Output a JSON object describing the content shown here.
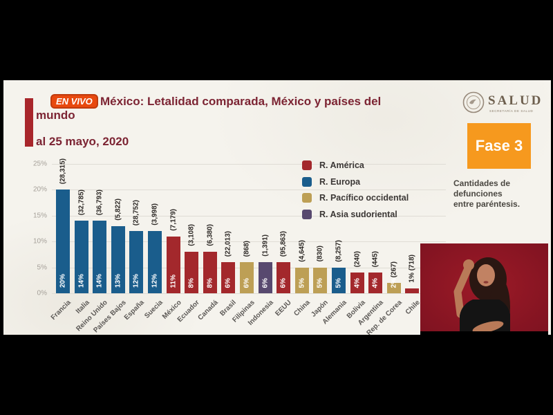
{
  "header": {
    "live_badge": "EN VIVO",
    "title_line1": "México: Letalidad comparada, México y países del",
    "title_line2": "mundo",
    "date": "al 25 mayo, 2020"
  },
  "branding": {
    "logo_text": "SALUD",
    "logo_subtext": "SECRETARÍA DE SALUD",
    "phase_label": "Fase 3",
    "note_lines": [
      "Cantidades de",
      "defunciones",
      "entre paréntesis."
    ]
  },
  "interpreter": {
    "description": "sign language interpreter on dark red background",
    "bg_color": "#8e1522"
  },
  "chart_data": {
    "type": "bar",
    "title": "México: Letalidad comparada, México y países del mundo",
    "as_of": "al 25 mayo, 2020",
    "ylabel": "",
    "ylim": [
      0,
      25
    ],
    "yticks": [
      "0%",
      "5%",
      "10%",
      "15%",
      "20%",
      "25%"
    ],
    "grid": true,
    "legend_position": "upper right",
    "legend": [
      {
        "label": "R. América",
        "color": "#a3282c"
      },
      {
        "label": "R. Europa",
        "color": "#1a5d8c"
      },
      {
        "label": "R. Pacífico occidental",
        "color": "#bd9f55"
      },
      {
        "label": "R. Asia sudoriental",
        "color": "#58496f"
      }
    ],
    "bars": [
      {
        "country": "Francia",
        "region": "R. Europa",
        "pct": 20,
        "pct_label": "20%",
        "deaths_label": "(28,315)"
      },
      {
        "country": "Italia",
        "region": "R. Europa",
        "pct": 14,
        "pct_label": "14%",
        "deaths_label": "(32,785)"
      },
      {
        "country": "Reino Unido",
        "region": "R. Europa",
        "pct": 14,
        "pct_label": "14%",
        "deaths_label": "(36,793)"
      },
      {
        "country": "Países Bajos",
        "region": "R. Europa",
        "pct": 13,
        "pct_label": "13%",
        "deaths_label": "(5,822)"
      },
      {
        "country": "España",
        "region": "R. Europa",
        "pct": 12,
        "pct_label": "12%",
        "deaths_label": "(28,752)"
      },
      {
        "country": "Suecia",
        "region": "R. Europa",
        "pct": 12,
        "pct_label": "12%",
        "deaths_label": "(3,998)"
      },
      {
        "country": "México",
        "region": "R. América",
        "pct": 11,
        "pct_label": "11%",
        "deaths_label": "(7,179)"
      },
      {
        "country": "Ecuador",
        "region": "R. América",
        "pct": 8,
        "pct_label": "8%",
        "deaths_label": "(3,108)"
      },
      {
        "country": "Canadá",
        "region": "R. América",
        "pct": 8,
        "pct_label": "8%",
        "deaths_label": "(6,380)"
      },
      {
        "country": "Brasil",
        "region": "R. América",
        "pct": 6,
        "pct_label": "6%",
        "deaths_label": "(22,013)"
      },
      {
        "country": "Filipinas",
        "region": "R. Pacífico occidental",
        "pct": 6,
        "pct_label": "6%",
        "deaths_label": "(868)"
      },
      {
        "country": "Indonesia",
        "region": "R. Asia sudoriental",
        "pct": 6,
        "pct_label": "6%",
        "deaths_label": "(1,391)"
      },
      {
        "country": "EEUU",
        "region": "R. América",
        "pct": 6,
        "pct_label": "6%",
        "deaths_label": "(95,863)"
      },
      {
        "country": "China",
        "region": "R. Pacífico occidental",
        "pct": 5,
        "pct_label": "5%",
        "deaths_label": "(4,645)"
      },
      {
        "country": "Japón",
        "region": "R. Pacífico occidental",
        "pct": 5,
        "pct_label": "5%",
        "deaths_label": "(830)"
      },
      {
        "country": "Alemania",
        "region": "R. Europa",
        "pct": 5,
        "pct_label": "5%",
        "deaths_label": "(8,257)"
      },
      {
        "country": "Bolivia",
        "region": "R. América",
        "pct": 4,
        "pct_label": "4%",
        "deaths_label": "(240)"
      },
      {
        "country": "Argentina",
        "region": "R. América",
        "pct": 4,
        "pct_label": "4%",
        "deaths_label": "(445)"
      },
      {
        "country": "Rep. de Corea",
        "region": "R. Pacífico occidental",
        "pct": 2,
        "pct_label": "2%",
        "deaths_label": "(267)"
      },
      {
        "country": "Chile",
        "region": "R. América",
        "pct": 1,
        "pct_label": "1%",
        "deaths_label": "(718)",
        "pct_outside": true
      }
    ]
  }
}
